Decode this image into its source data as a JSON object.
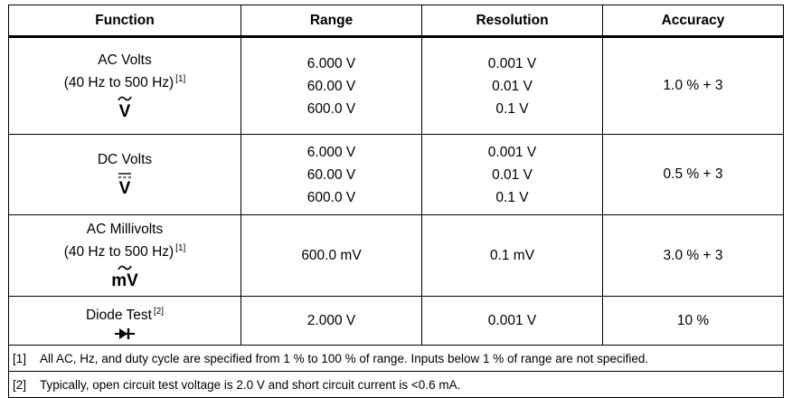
{
  "headers": [
    "Function",
    "Range",
    "Resolution",
    "Accuracy"
  ],
  "rows": [
    {
      "function_line1": "AC Volts",
      "function_line2": "(40 Hz to 500 Hz)",
      "note_ref": "[1]",
      "symbol": "V",
      "symbol_icon": "ac-volts-icon",
      "ranges": [
        "6.000 V",
        "60.00 V",
        "600.0 V"
      ],
      "resolutions": [
        "0.001 V",
        "0.01 V",
        "0.1 V"
      ],
      "accuracy": "1.0 % + 3"
    },
    {
      "function_line1": "DC Volts",
      "symbol": "V",
      "symbol_icon": "dc-volts-icon",
      "ranges": [
        "6.000 V",
        "60.00 V",
        "600.0 V"
      ],
      "resolutions": [
        "0.001 V",
        "0.01 V",
        "0.1 V"
      ],
      "accuracy": "0.5 % + 3"
    },
    {
      "function_line1": "AC Millivolts",
      "function_line2": "(40 Hz to 500 Hz)",
      "note_ref": "[1]",
      "symbol": "mV",
      "symbol_icon": "ac-millivolts-icon",
      "ranges": [
        "600.0 mV"
      ],
      "resolutions": [
        "0.1 mV"
      ],
      "accuracy": "3.0 % + 3"
    },
    {
      "function_line1": "Diode Test",
      "note_ref": "[2]",
      "symbol_icon": "diode-icon",
      "ranges": [
        "2.000 V"
      ],
      "resolutions": [
        "0.001 V"
      ],
      "accuracy": "10 %"
    }
  ],
  "notes": [
    {
      "id": "[1]",
      "text": "All AC, Hz, and duty cycle are specified from 1 % to 100 % of range. Inputs below 1 % of range are not specified."
    },
    {
      "id": "[2]",
      "text": "Typically, open circuit test voltage is 2.0 V and short circuit current is <0.6 mA."
    }
  ]
}
